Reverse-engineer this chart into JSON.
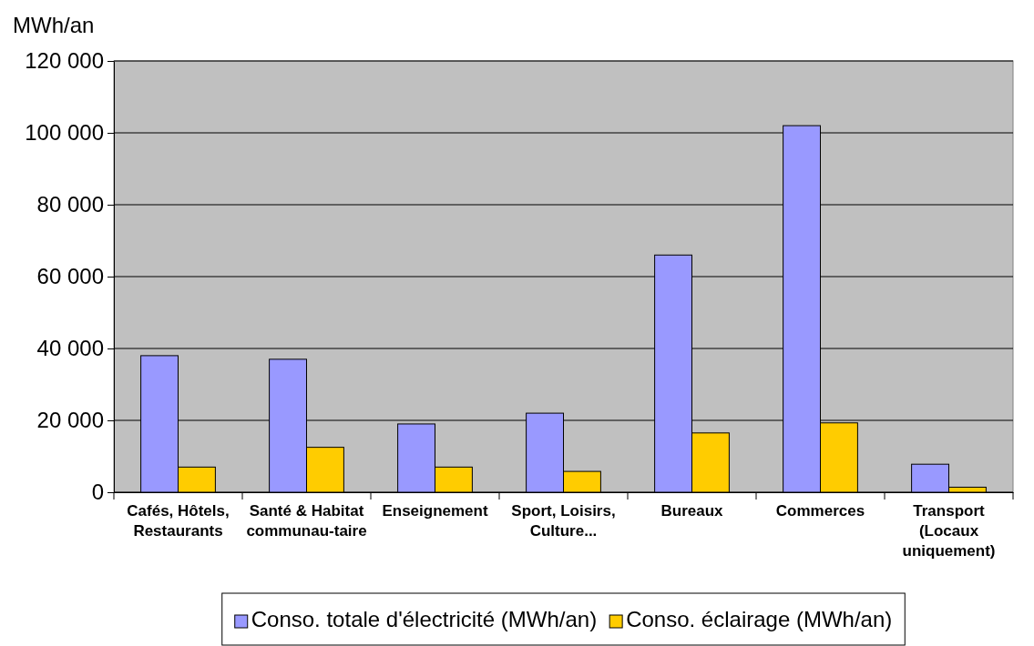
{
  "chart_data": {
    "type": "bar",
    "ylabel": "MWh/an",
    "categories": [
      "Cafés, Hôtels, Restaurants",
      "Santé & Habitat communau-taire",
      "Enseignement",
      "Sport, Loisirs, Culture...",
      "Bureaux",
      "Commerces",
      "Transport (Locaux uniquement)"
    ],
    "series": [
      {
        "name": "Conso. totale d'électricité (MWh/an)",
        "color": "#9999ff",
        "values": [
          38000,
          37000,
          19000,
          22000,
          66000,
          102000,
          7800
        ]
      },
      {
        "name": "Conso. éclairage (MWh/an)",
        "color": "#ffcc00",
        "values": [
          7000,
          12500,
          7000,
          5800,
          16500,
          19300,
          1400
        ]
      }
    ],
    "ylim": [
      0,
      120000
    ],
    "yticks": [
      0,
      {
        "value": 20000,
        "label": "20 000"
      },
      {
        "value": 40000,
        "label": "40 000"
      },
      {
        "value": 60000,
        "label": "60 000"
      },
      {
        "value": 80000,
        "label": "80 000"
      },
      {
        "value": 100000,
        "label": "100 000"
      },
      {
        "value": 120000,
        "label": "120 000"
      }
    ],
    "grid": "y",
    "legend": "bottom"
  }
}
